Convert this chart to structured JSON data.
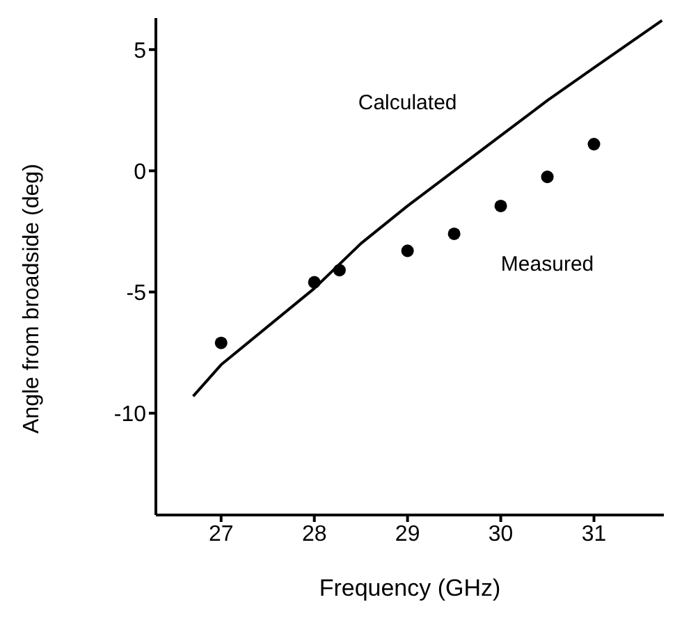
{
  "chart_data": {
    "type": "scatter",
    "xlabel": "Frequency (GHz)",
    "ylabel": "Angle from broadside (deg)",
    "xlim": [
      26.3,
      31.75
    ],
    "ylim": [
      -14.2,
      6.3
    ],
    "xticks": [
      27,
      28,
      29,
      30,
      31
    ],
    "yticks": [
      5,
      0,
      -5,
      -10
    ],
    "grid": false,
    "legend": false,
    "series": [
      {
        "name": "Calculated",
        "type": "line",
        "color": "#000000",
        "marker": "none",
        "line_style": "solid",
        "x": [
          26.7,
          27,
          28,
          28.5,
          29,
          29.5,
          30,
          30.5,
          31,
          31.73
        ],
        "values": [
          -9.3,
          -8.0,
          -4.85,
          -3.0,
          -1.45,
          0,
          1.45,
          2.9,
          4.25,
          6.2
        ]
      },
      {
        "name": "Measured",
        "color": "#000000",
        "marker": "circle",
        "x": [
          27,
          28,
          28.27,
          29,
          29.5,
          30,
          30.5,
          31
        ],
        "values": [
          -7.1,
          -4.6,
          -4.1,
          -3.3,
          -2.6,
          -1.45,
          -0.25,
          1.1
        ]
      }
    ]
  }
}
